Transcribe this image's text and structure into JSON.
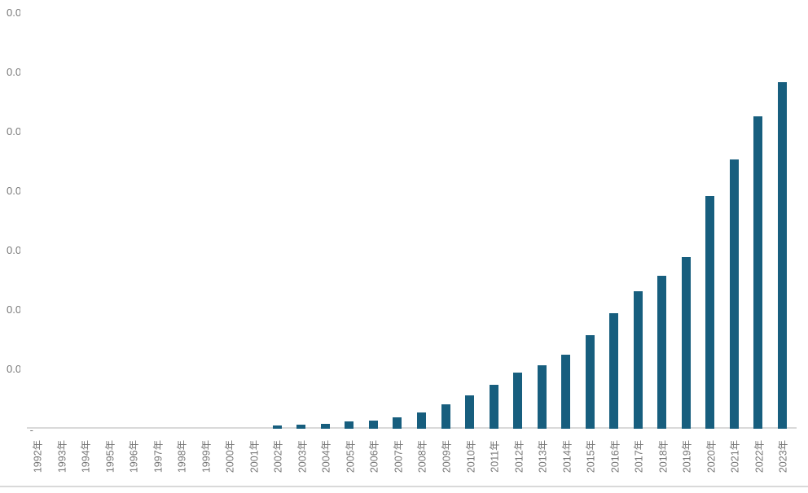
{
  "colors": {
    "bar": "#175E7E",
    "axis_line": "#D9D9D9",
    "tick_text": "#767676",
    "bottom_border": "#D9D9D9",
    "background": "#FFFFFF"
  },
  "chart_data": {
    "type": "bar",
    "title": "",
    "xlabel": "",
    "ylabel": "",
    "categories": [
      "1992年",
      "1993年",
      "1994年",
      "1995年",
      "1996年",
      "1997年",
      "1998年",
      "1999年",
      "2000年",
      "2001年",
      "2002年",
      "2003年",
      "2004年",
      "2005年",
      "2006年",
      "2007年",
      "2008年",
      "2009年",
      "2010年",
      "2011年",
      "2012年",
      "2013年",
      "2014年",
      "2015年",
      "2016年",
      "2017年",
      "2018年",
      "2019年",
      "2020年",
      "2021年",
      "2022年",
      "2023年"
    ],
    "values": [
      0,
      0,
      0,
      0,
      0,
      0,
      0,
      0,
      0,
      0,
      0.05,
      0.07,
      0.08,
      0.12,
      0.14,
      0.19,
      0.28,
      0.41,
      0.56,
      0.74,
      0.95,
      1.07,
      1.25,
      1.57,
      1.95,
      2.32,
      2.57,
      2.89,
      3.92,
      4.53,
      5.26,
      5.84
    ],
    "value_unit": "gridline-intervals (axis number labels cut off at image edge)",
    "ylim": [
      0,
      7
    ],
    "y_tick_step": 1,
    "y_tick_labels": [
      "-",
      "0.0",
      "0.0",
      "0.0",
      "0.0",
      "0.0",
      "0.0",
      "0.0"
    ],
    "y_tick_labels_left_truncated": true,
    "grid": false,
    "legend": null
  }
}
